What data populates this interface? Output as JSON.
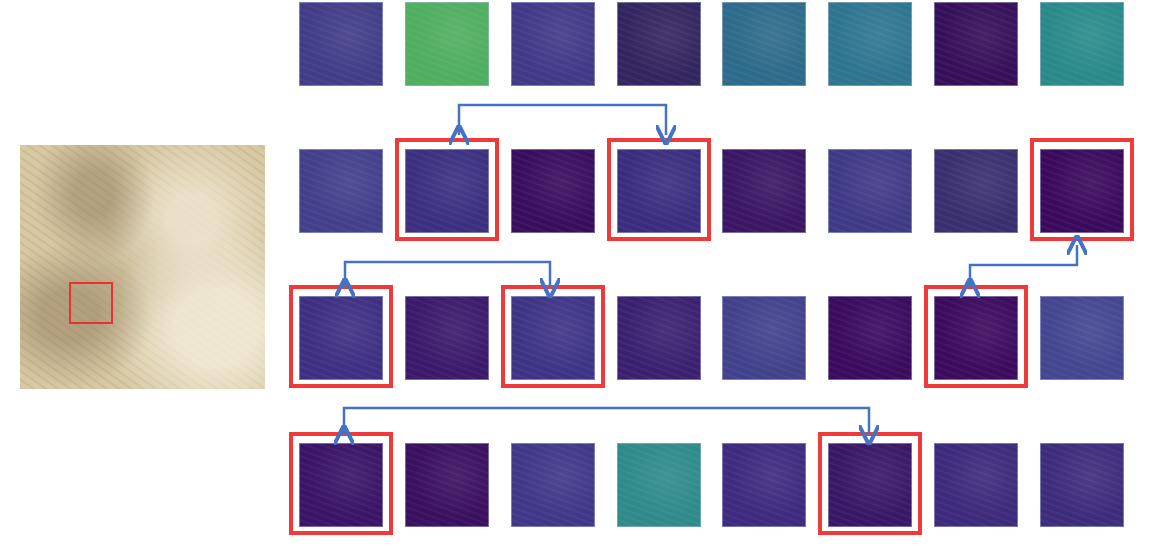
{
  "source_image": {
    "highlight_color": "#e8322d"
  },
  "feature_maps": {
    "rows": [
      [
        "#413d88",
        "#4fae5f",
        "#403a88",
        "#33265f",
        "#2d6b8a",
        "#2f7590",
        "#360f5a",
        "#2a8a8a"
      ],
      [
        "#433f8b",
        "#3b2f80",
        "#390d5e",
        "#3a2d7f",
        "#3b1664",
        "#3f3a86",
        "#3a2f6e",
        "#3a0a5c"
      ],
      [
        "#3e2f82",
        "#3b1a6b",
        "#3e3486",
        "#3a2170",
        "#42418c",
        "#3a0b5e",
        "#3c0b5e",
        "#434690"
      ],
      [
        "#3a1467",
        "#3a1060",
        "#3f3888",
        "#2f8a8a",
        "#3e2a7e",
        "#391766",
        "#3c2a7b",
        "#3d2c7c"
      ]
    ],
    "highlighted": [
      [
        1,
        1
      ],
      [
        1,
        3
      ],
      [
        1,
        7
      ],
      [
        2,
        0
      ],
      [
        2,
        2
      ],
      [
        2,
        6
      ],
      [
        3,
        0
      ],
      [
        3,
        5
      ]
    ],
    "links": [
      {
        "from": [
          1,
          1
        ],
        "to": [
          1,
          3
        ]
      },
      {
        "from": [
          2,
          0
        ],
        "to": [
          2,
          2
        ]
      },
      {
        "from": [
          2,
          6
        ],
        "to": [
          1,
          7
        ]
      },
      {
        "from": [
          3,
          0
        ],
        "to": [
          3,
          5
        ]
      }
    ],
    "highlight_color": "#f03a3a",
    "link_color": "#4472c4"
  }
}
